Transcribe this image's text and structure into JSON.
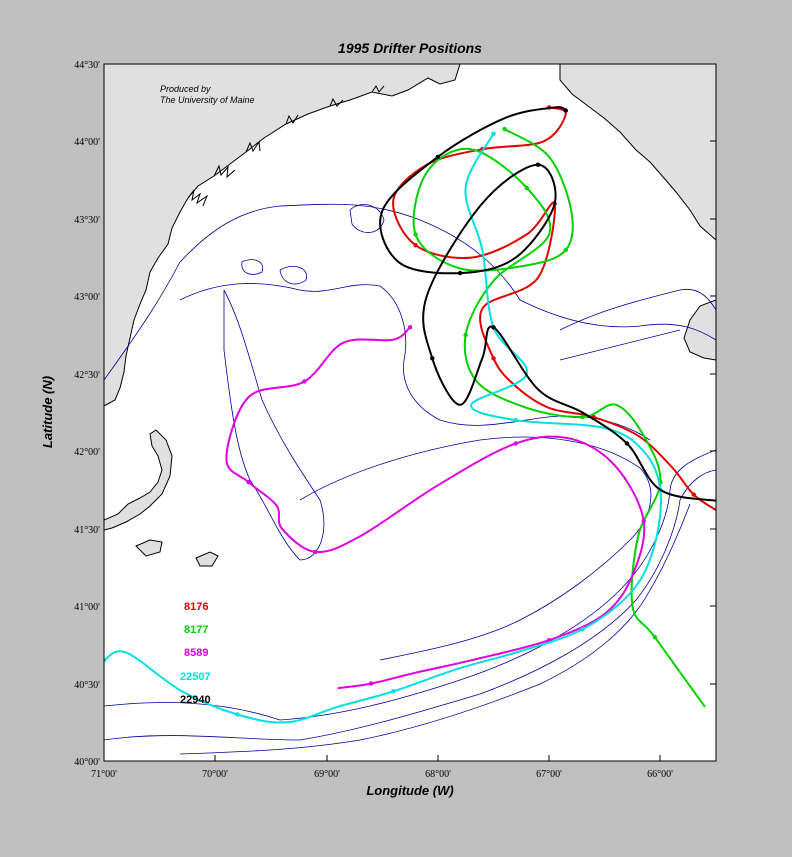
{
  "map": {
    "title": "1995 Drifter Positions",
    "credit_line1": "Produced by",
    "credit_line2": "The University of Maine",
    "xlabel": "Longitude (W)",
    "ylabel": "Latitude (N)",
    "x_ticks": [
      "71°00'",
      "70°00'",
      "69°00'",
      "68°00'",
      "67°00'",
      "66°00'"
    ],
    "y_ticks": [
      "44°30'",
      "44°00'",
      "43°30'",
      "43°00'",
      "42°30'",
      "42°00'",
      "41°30'",
      "41°00'",
      "40°30'",
      "40°00'"
    ],
    "colors": {
      "background": "#c0c0c0",
      "ocean": "#ffffff",
      "land": "#e0e0e0",
      "coastline": "#000000",
      "bathymetry": "#00009c"
    }
  },
  "chart_data": {
    "type": "line",
    "xlabel": "Longitude (W)",
    "ylabel": "Latitude (N)",
    "xlim": [
      -71.0,
      -65.5
    ],
    "ylim": [
      40.0,
      44.5
    ],
    "grid": false,
    "legend_placement": "lower-left",
    "series": [
      {
        "name": "8176",
        "color": "#e00000",
        "lon": [
          -67.0,
          -66.85,
          -67.05,
          -67.6,
          -68.1,
          -68.4,
          -68.2,
          -67.7,
          -67.2,
          -66.95,
          -67.1,
          -67.6,
          -67.5,
          -67.3,
          -67.0,
          -66.6,
          -66.2,
          -65.9,
          -65.7,
          -65.5
        ],
        "lat": [
          44.22,
          44.18,
          44.0,
          43.95,
          43.85,
          43.62,
          43.33,
          43.25,
          43.4,
          43.6,
          43.12,
          42.92,
          42.6,
          42.42,
          42.28,
          42.22,
          42.1,
          41.9,
          41.72,
          41.62
        ]
      },
      {
        "name": "8177",
        "color": "#00d000",
        "lon": [
          -67.4,
          -67.0,
          -66.8,
          -66.85,
          -67.2,
          -67.8,
          -68.2,
          -68.1,
          -67.7,
          -67.2,
          -67.0,
          -67.5,
          -67.75,
          -67.65,
          -67.2,
          -66.7,
          -66.4,
          -66.15,
          -66.0,
          -66.2,
          -66.25,
          -66.05,
          -65.6
        ],
        "lat": [
          44.08,
          43.9,
          43.55,
          43.3,
          43.2,
          43.18,
          43.4,
          43.8,
          43.95,
          43.7,
          43.4,
          43.1,
          42.75,
          42.45,
          42.28,
          42.22,
          42.3,
          42.1,
          41.8,
          41.45,
          41.0,
          40.8,
          40.35
        ]
      },
      {
        "name": "8589",
        "color": "#e000e0",
        "lon": [
          -68.25,
          -68.4,
          -68.85,
          -69.2,
          -69.7,
          -69.9,
          -69.7,
          -69.45,
          -69.4,
          -69.1,
          -68.7,
          -68.0,
          -67.3,
          -66.8,
          -66.4,
          -66.15,
          -66.25,
          -66.5,
          -67.0,
          -67.7,
          -68.2,
          -68.6,
          -68.9
        ],
        "lat": [
          42.8,
          42.72,
          42.7,
          42.45,
          42.35,
          41.95,
          41.8,
          41.65,
          41.5,
          41.35,
          41.45,
          41.78,
          42.05,
          42.08,
          41.9,
          41.55,
          41.2,
          40.95,
          40.78,
          40.65,
          40.57,
          40.5,
          40.47
        ]
      },
      {
        "name": "22507",
        "color": "#00e0e0",
        "lon": [
          -67.5,
          -67.75,
          -67.6,
          -67.5,
          -67.2,
          -67.7,
          -67.3,
          -66.5,
          -66.15,
          -66.0,
          -66.05,
          -66.25,
          -66.7,
          -67.3,
          -67.8,
          -68.4,
          -68.9,
          -69.35,
          -69.8,
          -70.3,
          -70.8,
          -71.0
        ],
        "lat": [
          44.05,
          43.7,
          43.3,
          42.8,
          42.5,
          42.3,
          42.2,
          42.15,
          42.0,
          41.75,
          41.4,
          41.1,
          40.85,
          40.7,
          40.6,
          40.45,
          40.35,
          40.25,
          40.3,
          40.45,
          40.7,
          40.65
        ]
      },
      {
        "name": "22940",
        "color": "#000000",
        "lon": [
          -66.85,
          -66.95,
          -67.4,
          -68.0,
          -68.5,
          -68.35,
          -67.8,
          -67.3,
          -66.95,
          -67.1,
          -67.6,
          -68.1,
          -68.05,
          -67.8,
          -67.6,
          -67.5,
          -67.1,
          -66.7,
          -66.3,
          -66.0,
          -65.5
        ],
        "lat": [
          44.2,
          44.22,
          44.15,
          43.9,
          43.55,
          43.22,
          43.15,
          43.25,
          43.6,
          43.85,
          43.6,
          43.0,
          42.6,
          42.3,
          42.6,
          42.8,
          42.4,
          42.25,
          42.05,
          41.75,
          41.68
        ]
      }
    ]
  }
}
